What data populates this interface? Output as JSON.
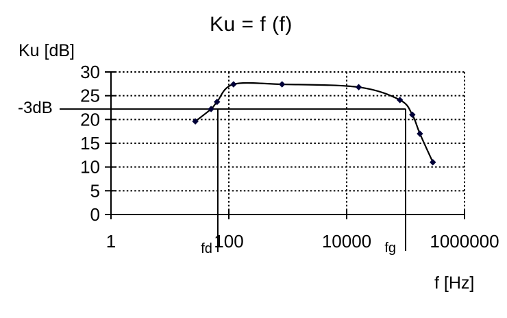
{
  "window": {
    "background": "#ffffff"
  },
  "chart_data": {
    "type": "line",
    "title": "Ku = f (f)",
    "ylabel": "Ku [dB]",
    "xlabel": "f [Hz]",
    "x_scale": "log",
    "xlim": [
      1,
      1000000
    ],
    "ylim": [
      0,
      30
    ],
    "x_tick_values": [
      1,
      100,
      10000,
      1000000
    ],
    "x_tick_labels": [
      "1",
      "100",
      "10000",
      "1000000"
    ],
    "y_tick_values": [
      0,
      5,
      10,
      15,
      20,
      25,
      30
    ],
    "gridlines": {
      "style": "dotted",
      "horizontal_db": [
        5,
        10,
        15,
        20,
        25,
        30
      ],
      "vertical_f": [
        100,
        10000,
        1000000
      ]
    },
    "legend": "none",
    "series": [
      {
        "name": "Ku",
        "marker": "diamond",
        "marker_color": "#000038",
        "line_color": "#000000",
        "points": [
          {
            "f": 27,
            "ku_db": 19.6
          },
          {
            "f": 50,
            "ku_db": 22.2
          },
          {
            "f": 63,
            "ku_db": 23.7
          },
          {
            "f": 120,
            "ku_db": 27.4
          },
          {
            "f": 800,
            "ku_db": 27.4
          },
          {
            "f": 16000,
            "ku_db": 26.8
          },
          {
            "f": 80000,
            "ku_db": 24.1
          },
          {
            "f": 130000,
            "ku_db": 21.0
          },
          {
            "f": 175000,
            "ku_db": 17.0
          },
          {
            "f": 290000,
            "ku_db": 11.0
          }
        ]
      }
    ],
    "annotations": {
      "minus3db_line": {
        "label": "-3dB",
        "ku_db": 22.2
      },
      "fd_line": {
        "label": "fd",
        "f": 65
      },
      "fg_line": {
        "label": "fg",
        "f": 100000
      }
    }
  }
}
